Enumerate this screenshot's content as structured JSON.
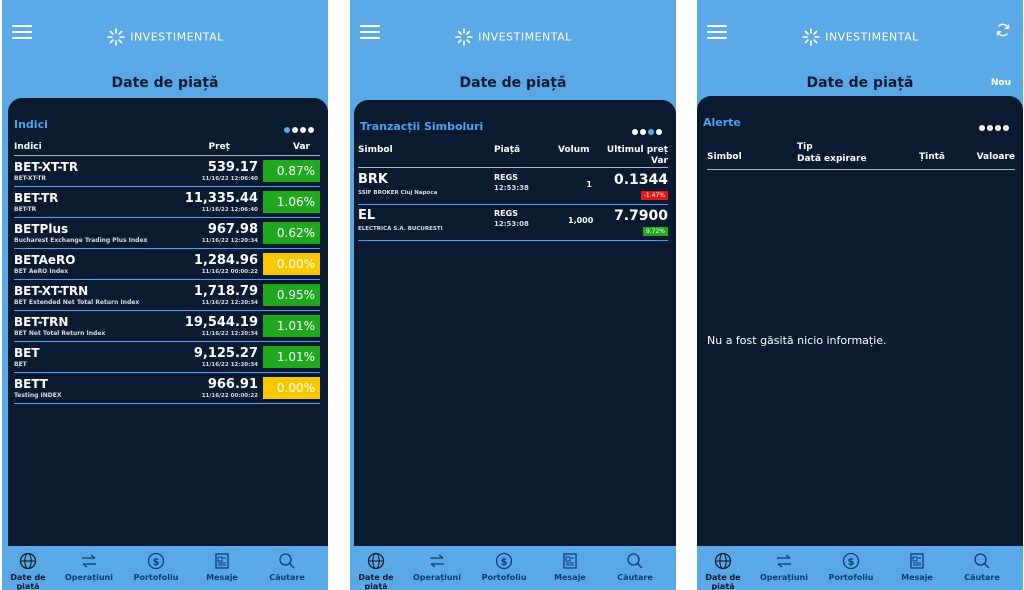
{
  "brand": "INVESTIMENTAL",
  "page_title": "Date de piață",
  "tabs": [
    "Date de piață",
    "Operațiuni",
    "Portofoliu",
    "Mesaje",
    "Căutare"
  ],
  "colors": {
    "header": "#5ba8e6",
    "panel": "#0a1a30",
    "up": "#1fa81f",
    "down": "#e01919",
    "zero": "#f7c800"
  },
  "screen1": {
    "panel_title": "Indici",
    "columns": [
      "Indici",
      "Preț",
      "Var"
    ],
    "rows": [
      {
        "name": "BET-XT-TR",
        "sub": "BET-XT-TR",
        "price": "539.17",
        "ts": "11/16/22  12:06:40",
        "var": "0.87%"
      },
      {
        "name": "BET-TR",
        "sub": "BET-TR",
        "price": "11,335.44",
        "ts": "11/16/22  12:06:40",
        "var": "1.06%"
      },
      {
        "name": "BETPlus",
        "sub": "Bucharest Exchange Trading Plus Index",
        "price": "967.98",
        "ts": "11/16/22  12:20:34",
        "var": "0.62%"
      },
      {
        "name": "BETAeRO",
        "sub": "BET AeRO Index",
        "price": "1,284.96",
        "ts": "11/16/22  00:00:22",
        "var": "0.00%"
      },
      {
        "name": "BET-XT-TRN",
        "sub": "BET Extended Net Total Return Index",
        "price": "1,718.79",
        "ts": "11/16/22  12:20:34",
        "var": "0.95%"
      },
      {
        "name": "BET-TRN",
        "sub": "BET Net Total Return Index",
        "price": "19,544.19",
        "ts": "11/16/22  12:20:34",
        "var": "1.01%"
      },
      {
        "name": "BET",
        "sub": "BET",
        "price": "9,125.27",
        "ts": "11/16/22  12:20:34",
        "var": "1.01%"
      },
      {
        "name": "BETT",
        "sub": "Testing INDEX",
        "price": "966.91",
        "ts": "11/16/22  00:00:22",
        "var": "0.00%"
      }
    ]
  },
  "screen2": {
    "panel_title": "Tranzacții Simboluri",
    "columns": [
      "Simbol",
      "Piață",
      "Volum",
      "Ultimul preț",
      "Var"
    ],
    "rows": [
      {
        "symbol": "BRK",
        "sub": "SSIF BROKER Cluj Napoca",
        "market": "REGS",
        "time": "12:53:38",
        "volume": "1",
        "last": "0.1344",
        "var": "-1.47%"
      },
      {
        "symbol": "EL",
        "sub": "ELECTRICA S.A. BUCURESTI",
        "market": "REGS",
        "time": "12:53:08",
        "volume": "1,000",
        "last": "7.7900",
        "var": "9.72%"
      }
    ]
  },
  "screen3": {
    "panel_title": "Alerte",
    "new_label": "Nou",
    "columns": {
      "symbol": "Simbol",
      "type": "Tip",
      "expiry": "Dată expirare",
      "target": "Țintă",
      "value": "Valoare"
    },
    "empty_message": "Nu a fost găsită nicio informație."
  }
}
